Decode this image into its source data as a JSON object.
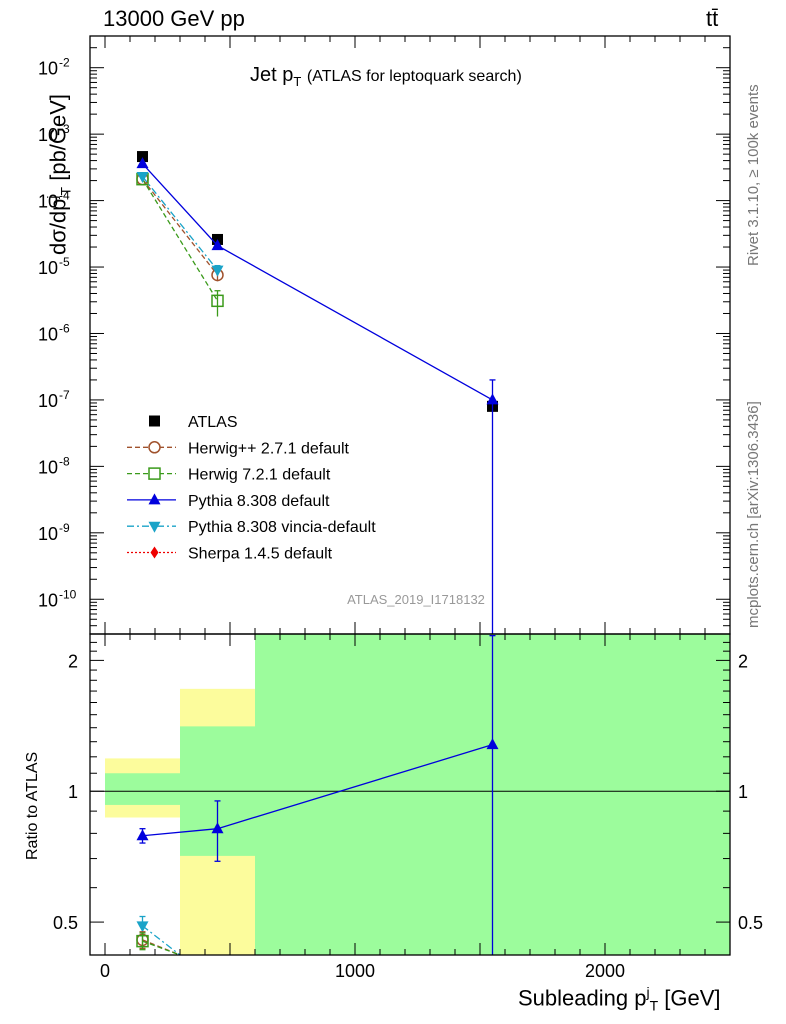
{
  "header": {
    "left": "13000 GeV pp",
    "right": "tt̄",
    "title_main": "Jet p",
    "title_sub": "T",
    "title_rest": "(ATLAS for leptoquark search)"
  },
  "side_labels": {
    "rivet": "Rivet 3.1.10, ≥ 100k events",
    "mcplots": "mcplots.cern.ch [arXiv:1306.3436]"
  },
  "watermark": "ATLAS_2019_I1718132",
  "axes": {
    "ylabel_main": "dσ/dp",
    "ylabel_main_sup": "j",
    "ylabel_main_sub": "T",
    "ylabel_main_unit": "[pb/GeV]",
    "ylabel_ratio": "Ratio to ATLAS",
    "xlabel_main": "Subleading p",
    "xlabel_sup": "j",
    "xlabel_sub": "T",
    "xlabel_unit": "[GeV]",
    "x_ticks": [
      "0",
      "1000",
      "2000"
    ],
    "y_ticks_main": [
      "10",
      "10",
      "10",
      "10",
      "10",
      "10",
      "10",
      "10",
      "10"
    ],
    "y_ticks_main_exp": [
      "-2",
      "-3",
      "-4",
      "-5",
      "-6",
      "-7",
      "-8",
      "-9",
      "-10"
    ],
    "y_ticks_ratio": [
      "2",
      "1",
      "0.5"
    ]
  },
  "colors": {
    "data": "#000000",
    "herwigpp": "#a0522d",
    "herwig7": "#3a9a1a",
    "pythia": "#0000dd",
    "vincia": "#1aa3c8",
    "sherpa": "#ee0000",
    "band_inner": "#9cfc9c",
    "band_outer": "#fcfc9c"
  },
  "chart_data": {
    "type": "scatter",
    "main_panel": {
      "x_scale": "linear",
      "y_scale": "log",
      "xlim": [
        -60,
        2500
      ],
      "ylim": [
        3e-11,
        0.03
      ],
      "bins": [
        [
          0,
          300
        ],
        [
          300,
          600
        ],
        [
          600,
          2500
        ]
      ],
      "series": [
        {
          "name": "ATLAS",
          "x": [
            150,
            450,
            1550
          ],
          "y": [
            0.00046,
            2.6e-05,
            8e-08
          ],
          "yerr_low": [
            0,
            0,
            0
          ],
          "yerr_high": [
            0,
            0,
            0
          ]
        },
        {
          "name": "Herwig++ 2.7.1 default",
          "x": [
            150,
            450
          ],
          "y": [
            0.00021,
            7.6e-06
          ],
          "yerr_low": [
            0,
            1.5e-06
          ],
          "yerr_high": [
            0,
            1.5e-06
          ]
        },
        {
          "name": "Herwig 7.2.1 default",
          "x": [
            150,
            450
          ],
          "y": [
            0.00021,
            3.1e-06
          ],
          "yerr_low": [
            0,
            1.3e-06
          ],
          "yerr_high": [
            0,
            1.3e-06
          ]
        },
        {
          "name": "Pythia 8.308 default",
          "x": [
            150,
            450,
            1550
          ],
          "y": [
            0.00036,
            2.1e-05,
            1e-07
          ],
          "yerr_low": [
            0,
            0,
            1e-07
          ],
          "yerr_high": [
            0,
            0,
            1e-07
          ]
        },
        {
          "name": "Pythia 8.308 vincia-default",
          "x": [
            150,
            450
          ],
          "y": [
            0.00023,
            9e-06
          ],
          "yerr_low": [
            0,
            1.5e-06
          ],
          "yerr_high": [
            0,
            1.5e-06
          ]
        },
        {
          "name": "Sherpa 1.4.5 default",
          "x": [],
          "y": [],
          "yerr_low": [],
          "yerr_high": []
        }
      ]
    },
    "ratio_panel": {
      "y_scale": "log",
      "ylim": [
        0.42,
        2.3
      ],
      "band_inner": [
        [
          0.93,
          1.1
        ],
        [
          0.71,
          1.41
        ],
        [
          0.0,
          2.5
        ]
      ],
      "band_outer": [
        [
          0.87,
          1.19
        ],
        [
          0.0,
          1.72
        ],
        [
          0.0,
          2.5
        ]
      ],
      "series": [
        {
          "name": "Pythia 8.308 default",
          "x": [
            150,
            450,
            1550
          ],
          "y": [
            0.79,
            0.82,
            1.28
          ],
          "yerr_low": [
            0.03,
            0.13,
            1.0
          ],
          "yerr_high": [
            0.03,
            0.13,
            1.0
          ]
        },
        {
          "name": "Pythia 8.308 vincia-default",
          "x": [
            150,
            300
          ],
          "y": [
            0.49,
            0.3
          ],
          "yerr_low": [
            0.025,
            0
          ],
          "yerr_high": [
            0.025,
            0
          ]
        },
        {
          "name": "Herwig++ 2.7.1 default",
          "x": [
            150,
            300
          ],
          "y": [
            0.455,
            0.28
          ],
          "yerr_low": [
            0.02,
            0
          ],
          "yerr_high": [
            0.02,
            0
          ]
        },
        {
          "name": "Herwig 7.2.1 default",
          "x": [
            150,
            300
          ],
          "y": [
            0.452,
            0.28
          ],
          "yerr_low": [
            0.02,
            0
          ],
          "yerr_high": [
            0.02,
            0
          ]
        }
      ]
    },
    "legend": {
      "placement": "lower-left",
      "entries": [
        {
          "label": "ATLAS",
          "marker": "square",
          "line": "none",
          "color_key": "data"
        },
        {
          "label": "Herwig++ 2.7.1 default",
          "marker": "circle-open",
          "line": "dashed",
          "color_key": "herwigpp"
        },
        {
          "label": "Herwig 7.2.1 default",
          "marker": "square-open",
          "line": "dashed",
          "color_key": "herwig7"
        },
        {
          "label": "Pythia 8.308 default",
          "marker": "triangle-up",
          "line": "solid",
          "color_key": "pythia"
        },
        {
          "label": "Pythia 8.308 vincia-default",
          "marker": "triangle-down",
          "line": "dashdot",
          "color_key": "vincia"
        },
        {
          "label": "Sherpa 1.4.5 default",
          "marker": "diamond",
          "line": "dotted",
          "color_key": "sherpa"
        }
      ]
    }
  }
}
